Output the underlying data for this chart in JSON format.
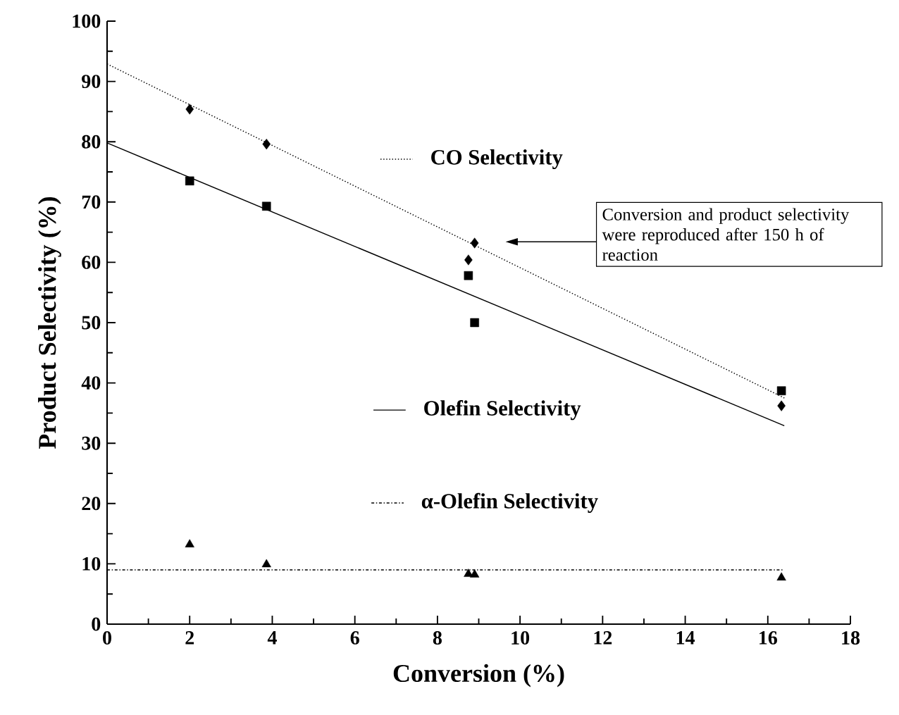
{
  "chart_data": {
    "type": "scatter",
    "xlabel": "Conversion (%)",
    "ylabel": "Product Selectivity (%)",
    "xlim": [
      0,
      18
    ],
    "xticks": [
      0,
      2,
      4,
      6,
      8,
      10,
      12,
      14,
      16,
      18
    ],
    "ylim": [
      0,
      100
    ],
    "yticks": [
      0,
      10,
      20,
      30,
      40,
      50,
      60,
      70,
      80,
      90,
      100
    ],
    "annotations": [
      "Conversion and product selectivity were reproduced after 150 h of reaction"
    ],
    "legend": "center",
    "series": [
      {
        "name": "CO Selectivity",
        "type": "line",
        "color": "#000000",
        "line_style": "dotted",
        "marker": "none",
        "x": [
          0,
          16.4
        ],
        "values": [
          92.9,
          37.5
        ]
      },
      {
        "name": "Olefin Selectivity",
        "type": "line",
        "color": "#000000",
        "line_style": "solid",
        "marker": "none",
        "x": [
          0,
          16.4
        ],
        "values": [
          79.8,
          32.9
        ]
      },
      {
        "name": "α-Olefin Selectivity",
        "type": "line",
        "color": "#000000",
        "line_style": "dashdot",
        "marker": "none",
        "x": [
          0,
          16.4
        ],
        "values": [
          9.0,
          9.0
        ]
      },
      {
        "color": "#000000",
        "marker": "diamond",
        "x": [
          2,
          3.86,
          8.75,
          8.9,
          16.33
        ],
        "values": [
          85.4,
          79.6,
          60.4,
          63.2,
          36.2
        ]
      },
      {
        "color": "#000000",
        "marker": "square",
        "x": [
          2,
          3.86,
          8.75,
          8.9,
          16.33
        ],
        "values": [
          73.5,
          69.3,
          57.8,
          50.0,
          38.7
        ]
      },
      {
        "color": "#000000",
        "marker": "triangle",
        "x": [
          2,
          3.86,
          8.75,
          8.9,
          16.33
        ],
        "values": [
          13.2,
          9.9,
          8.3,
          8.2,
          7.7
        ]
      }
    ]
  }
}
